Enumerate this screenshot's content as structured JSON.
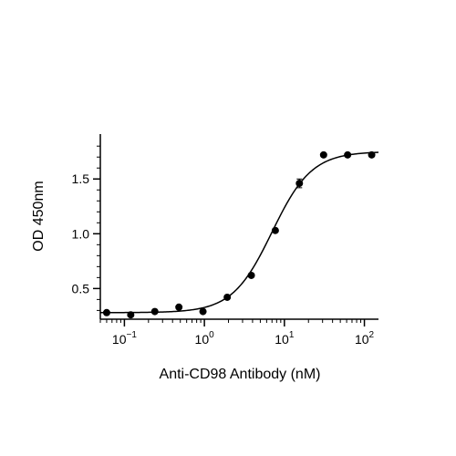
{
  "chart_data": {
    "type": "scatter",
    "xscale": "log",
    "xlabel": "Anti-CD98 Antibody (nM)",
    "ylabel": "OD 450nm",
    "xlim": [
      0.05,
      150
    ],
    "ylim": [
      0.22,
      1.91
    ],
    "grid": false,
    "legend": "none",
    "x_ticks": [
      {
        "value": 0.1,
        "base": "10",
        "exp": "−1"
      },
      {
        "value": 1,
        "base": "10",
        "exp": "0"
      },
      {
        "value": 10,
        "base": "10",
        "exp": "1"
      },
      {
        "value": 100,
        "base": "10",
        "exp": "2"
      }
    ],
    "y_ticks": [
      {
        "value": 0.5,
        "label": "0.5"
      },
      {
        "value": 1.0,
        "label": "1.0"
      },
      {
        "value": 1.5,
        "label": "1.5"
      }
    ],
    "series": [
      {
        "type": "scatter",
        "x": [
          0.06,
          0.12,
          0.24,
          0.48,
          0.96,
          1.93,
          3.86,
          7.7,
          15.4,
          30.9,
          61.7,
          123.4
        ],
        "y": [
          0.28,
          0.26,
          0.29,
          0.33,
          0.29,
          0.42,
          0.62,
          1.03,
          1.46,
          1.72,
          1.72,
          1.72
        ],
        "error": [
          0,
          0,
          0,
          0,
          0,
          0,
          0,
          0,
          0.04,
          0,
          0,
          0
        ]
      },
      {
        "type": "line",
        "fit": "4PL",
        "bottom": 0.28,
        "top": 1.75,
        "ec50": 7.0,
        "hill": 1.75
      }
    ],
    "colors": {
      "marker": "#000000",
      "line": "#000000",
      "axis": "#000000"
    }
  }
}
